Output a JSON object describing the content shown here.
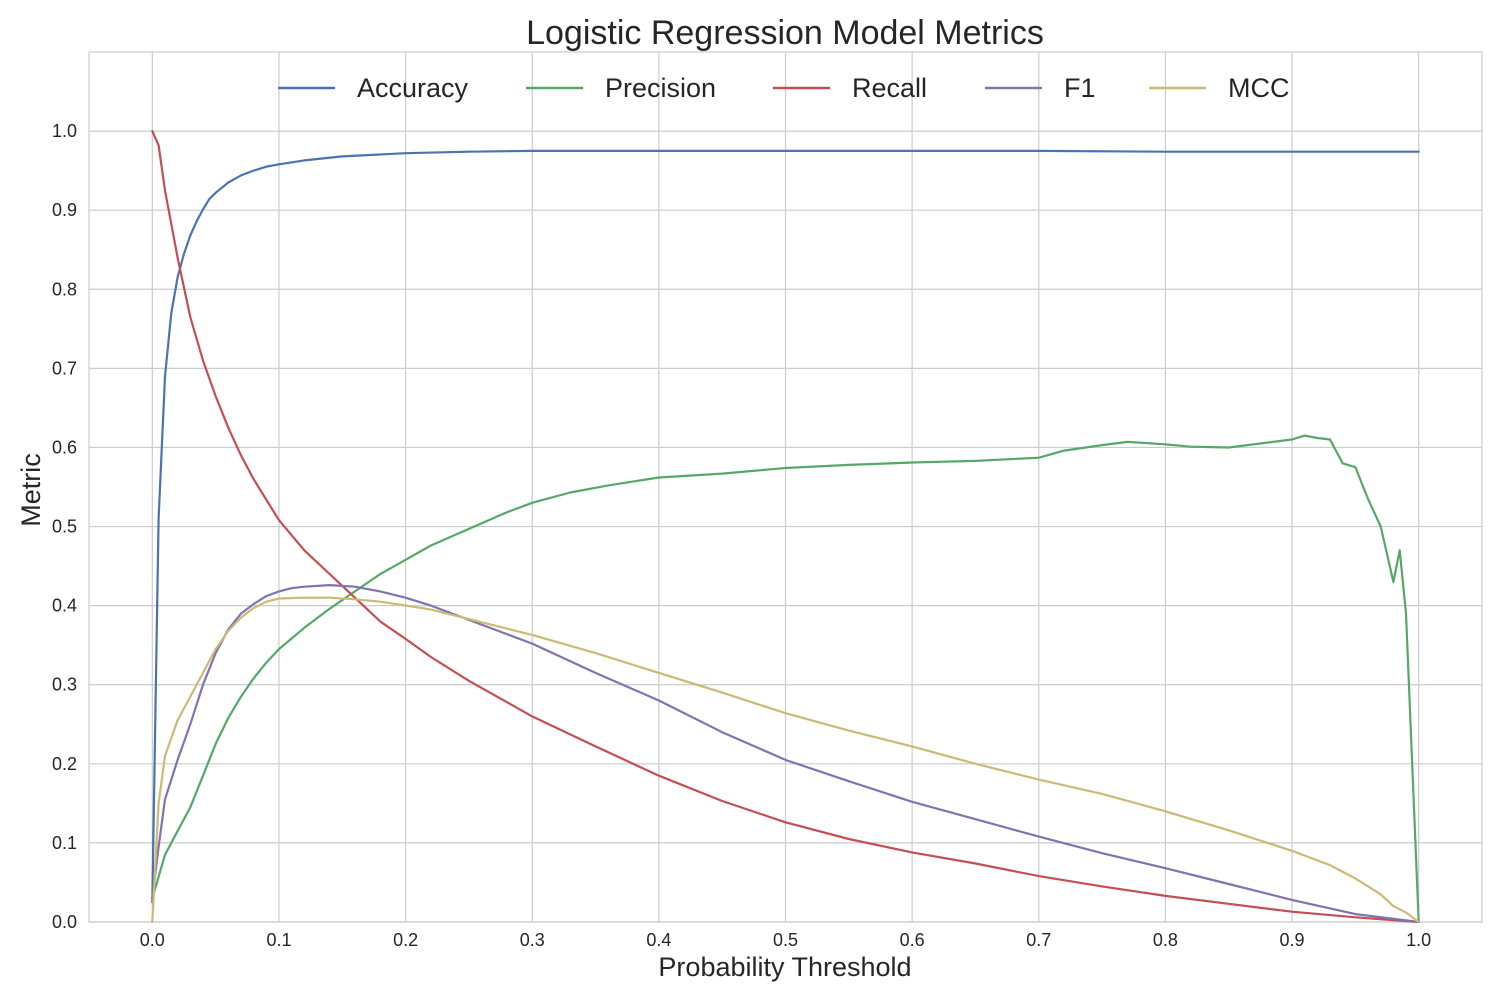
{
  "chart_data": {
    "type": "line",
    "title": "Logistic Regression Model Metrics",
    "xlabel": "Probability Threshold",
    "ylabel": "Metric",
    "xlim": [
      -0.05,
      1.05
    ],
    "ylim": [
      0.0,
      1.1
    ],
    "grid": true,
    "legend_position": "top-center",
    "x_ticks": [
      "0.0",
      "0.1",
      "0.2",
      "0.3",
      "0.4",
      "0.5",
      "0.6",
      "0.7",
      "0.8",
      "0.9",
      "1.0"
    ],
    "y_ticks": [
      "0.0",
      "0.1",
      "0.2",
      "0.3",
      "0.4",
      "0.5",
      "0.6",
      "0.7",
      "0.8",
      "0.9",
      "1.0"
    ],
    "series": [
      {
        "name": "Accuracy",
        "color": "#4c72b0",
        "x": [
          0.0,
          0.005,
          0.01,
          0.015,
          0.02,
          0.025,
          0.03,
          0.035,
          0.04,
          0.045,
          0.05,
          0.06,
          0.07,
          0.08,
          0.09,
          0.1,
          0.12,
          0.15,
          0.2,
          0.25,
          0.3,
          0.4,
          0.5,
          0.6,
          0.7,
          0.8,
          0.9,
          1.0
        ],
        "y": [
          0.025,
          0.51,
          0.69,
          0.77,
          0.815,
          0.845,
          0.868,
          0.886,
          0.901,
          0.914,
          0.922,
          0.935,
          0.944,
          0.95,
          0.955,
          0.958,
          0.963,
          0.968,
          0.972,
          0.974,
          0.975,
          0.975,
          0.975,
          0.975,
          0.975,
          0.974,
          0.974,
          0.974
        ]
      },
      {
        "name": "Precision",
        "color": "#55a868",
        "x": [
          0.0,
          0.01,
          0.02,
          0.03,
          0.04,
          0.05,
          0.06,
          0.07,
          0.08,
          0.09,
          0.1,
          0.12,
          0.14,
          0.16,
          0.18,
          0.2,
          0.22,
          0.25,
          0.28,
          0.3,
          0.33,
          0.36,
          0.4,
          0.45,
          0.5,
          0.55,
          0.6,
          0.65,
          0.7,
          0.72,
          0.75,
          0.77,
          0.8,
          0.82,
          0.85,
          0.88,
          0.9,
          0.91,
          0.92,
          0.93,
          0.94,
          0.95,
          0.96,
          0.97,
          0.98,
          0.985,
          0.99,
          1.0
        ],
        "y": [
          0.03,
          0.085,
          0.115,
          0.145,
          0.185,
          0.225,
          0.258,
          0.285,
          0.308,
          0.328,
          0.345,
          0.372,
          0.396,
          0.418,
          0.44,
          0.458,
          0.476,
          0.497,
          0.518,
          0.53,
          0.543,
          0.552,
          0.562,
          0.567,
          0.574,
          0.578,
          0.581,
          0.583,
          0.587,
          0.596,
          0.603,
          0.607,
          0.604,
          0.601,
          0.6,
          0.606,
          0.61,
          0.615,
          0.612,
          0.61,
          0.58,
          0.575,
          0.535,
          0.5,
          0.43,
          0.47,
          0.39,
          0.0
        ]
      },
      {
        "name": "Recall",
        "color": "#c44e52",
        "x": [
          0.0,
          0.005,
          0.01,
          0.02,
          0.03,
          0.04,
          0.05,
          0.06,
          0.07,
          0.08,
          0.09,
          0.1,
          0.12,
          0.14,
          0.16,
          0.18,
          0.2,
          0.22,
          0.25,
          0.3,
          0.35,
          0.4,
          0.45,
          0.5,
          0.55,
          0.6,
          0.65,
          0.7,
          0.75,
          0.8,
          0.85,
          0.9,
          0.95,
          1.0
        ],
        "y": [
          1.0,
          0.982,
          0.925,
          0.84,
          0.765,
          0.71,
          0.665,
          0.625,
          0.59,
          0.56,
          0.534,
          0.508,
          0.47,
          0.44,
          0.41,
          0.38,
          0.358,
          0.335,
          0.305,
          0.26,
          0.222,
          0.185,
          0.153,
          0.126,
          0.105,
          0.088,
          0.074,
          0.058,
          0.045,
          0.033,
          0.023,
          0.013,
          0.006,
          0.0
        ]
      },
      {
        "name": "F1",
        "color": "#8172b2",
        "x": [
          0.0,
          0.005,
          0.01,
          0.02,
          0.03,
          0.04,
          0.05,
          0.06,
          0.07,
          0.08,
          0.09,
          0.1,
          0.11,
          0.12,
          0.14,
          0.16,
          0.18,
          0.2,
          0.22,
          0.25,
          0.3,
          0.35,
          0.4,
          0.45,
          0.5,
          0.55,
          0.6,
          0.65,
          0.7,
          0.75,
          0.8,
          0.85,
          0.9,
          0.95,
          1.0
        ],
        "y": [
          0.03,
          0.095,
          0.155,
          0.205,
          0.25,
          0.3,
          0.34,
          0.37,
          0.39,
          0.402,
          0.412,
          0.418,
          0.422,
          0.424,
          0.426,
          0.424,
          0.418,
          0.41,
          0.4,
          0.382,
          0.352,
          0.315,
          0.28,
          0.24,
          0.205,
          0.178,
          0.152,
          0.13,
          0.108,
          0.087,
          0.068,
          0.048,
          0.028,
          0.01,
          0.0
        ]
      },
      {
        "name": "MCC",
        "color": "#ccb974",
        "x": [
          0.0,
          0.005,
          0.01,
          0.02,
          0.03,
          0.04,
          0.05,
          0.06,
          0.07,
          0.08,
          0.09,
          0.1,
          0.12,
          0.14,
          0.16,
          0.18,
          0.2,
          0.22,
          0.25,
          0.3,
          0.35,
          0.4,
          0.45,
          0.5,
          0.55,
          0.6,
          0.65,
          0.7,
          0.75,
          0.8,
          0.85,
          0.9,
          0.93,
          0.95,
          0.97,
          0.98,
          0.99,
          1.0
        ],
        "y": [
          0.0,
          0.15,
          0.21,
          0.255,
          0.285,
          0.315,
          0.345,
          0.368,
          0.385,
          0.397,
          0.405,
          0.409,
          0.41,
          0.41,
          0.408,
          0.405,
          0.4,
          0.395,
          0.383,
          0.363,
          0.34,
          0.315,
          0.29,
          0.264,
          0.242,
          0.222,
          0.2,
          0.18,
          0.162,
          0.14,
          0.116,
          0.09,
          0.072,
          0.055,
          0.035,
          0.02,
          0.012,
          0.0
        ]
      }
    ]
  }
}
